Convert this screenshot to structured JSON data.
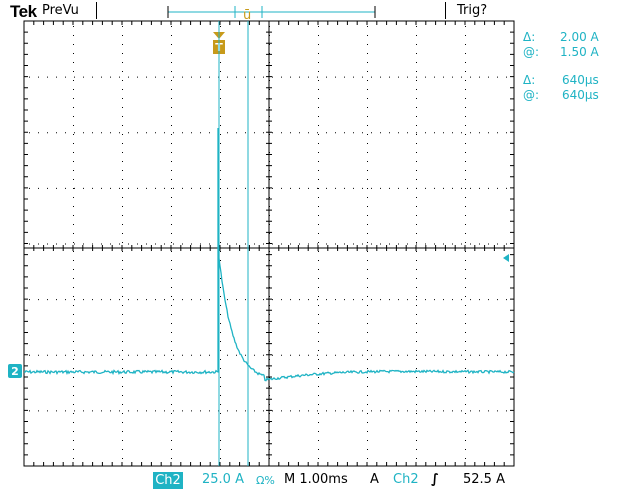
{
  "header": {
    "brand": "Tek",
    "mode": "PreVu",
    "trigger_status": "Trig?"
  },
  "readouts": {
    "delta_amp_label": "Δ:",
    "delta_amp_value": "2.00 A",
    "at_amp_label": "@:",
    "at_amp_value": "1.50 A",
    "delta_time_label": "Δ:",
    "delta_time_value": "640µs",
    "at_time_label": "@:",
    "at_time_value": "640µs"
  },
  "footer": {
    "channel": "Ch2",
    "vertical_scale": "25.0 A",
    "ohm_symbol": "Ω%",
    "timebase": "M 1.00ms",
    "trigger_mode": "A",
    "trigger_source": "Ch2",
    "trigger_slope_icon": "rising-edge",
    "trigger_level": "52.5 A"
  },
  "markers": {
    "channel_ground_label": "2",
    "trigger_position_label": "T"
  },
  "colors": {
    "trace": "#1fb3c4",
    "trigger_marker": "#c79a1a",
    "grid": "#000000"
  }
}
